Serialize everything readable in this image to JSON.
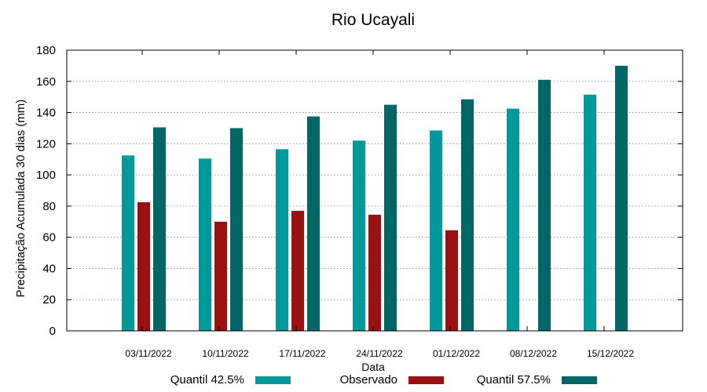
{
  "chart_data": {
    "type": "bar",
    "title": "Rio Ucayali",
    "xlabel": "Data",
    "ylabel": "Precipitação Acumulada 30 dias (mm)",
    "ylim": [
      0,
      180
    ],
    "yticks": [
      0,
      20,
      40,
      60,
      80,
      100,
      120,
      140,
      160,
      180
    ],
    "grid": true,
    "legend_position": "bottom",
    "categories": [
      "03/11/2022",
      "10/11/2022",
      "17/11/2022",
      "24/11/2022",
      "01/12/2022",
      "08/12/2022",
      "15/12/2022"
    ],
    "series": [
      {
        "name": "Quantil 42.5%",
        "color": "#009999",
        "values": [
          112.5,
          110.5,
          116.5,
          122.0,
          128.5,
          142.5,
          151.5
        ]
      },
      {
        "name": "Observado",
        "color": "#991111",
        "values": [
          82.5,
          70.0,
          77.0,
          74.5,
          64.5,
          null,
          null
        ]
      },
      {
        "name": "Quantil 57.5%",
        "color": "#006666",
        "values": [
          130.5,
          130.0,
          137.5,
          145.0,
          148.5,
          161.0,
          170.0
        ]
      }
    ]
  }
}
